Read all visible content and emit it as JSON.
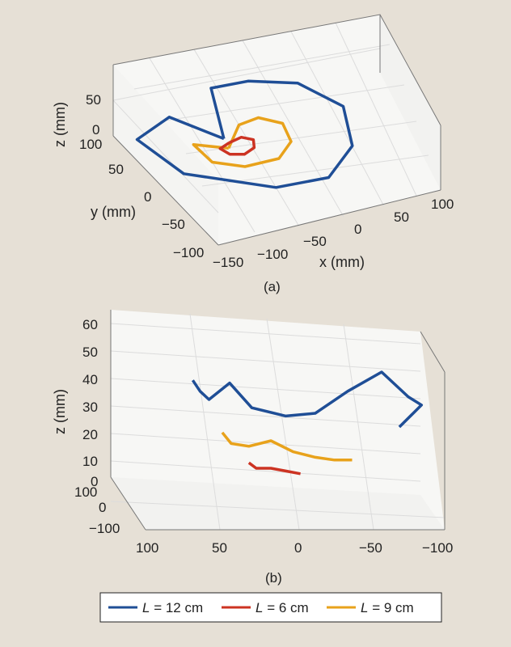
{
  "chart_data": [
    {
      "type": "line",
      "panel": "a",
      "caption": "(a)",
      "xlabel": "x (mm)",
      "ylabel": "y (mm)",
      "zlabel": "z (mm)",
      "xticks": [
        "−150",
        "−100",
        "−50",
        "0",
        "50",
        "100"
      ],
      "yticks": [
        "−100",
        "−50",
        "0",
        "50",
        "100"
      ],
      "zticks": [
        "0",
        "50"
      ],
      "xlim": [
        -150,
        100
      ],
      "ylim": [
        -100,
        100
      ],
      "zlim": [
        0,
        60
      ],
      "grid": true,
      "series": [
        {
          "name": "L = 12 cm",
          "x": [
            -42,
            -85,
            -140,
            -115,
            -30,
            30,
            75,
            90,
            60,
            10,
            -40,
            -42
          ],
          "y": [
            20,
            70,
            30,
            -40,
            -95,
            -100,
            -60,
            0,
            55,
            75,
            60,
            20
          ],
          "z": [
            0,
            10,
            18,
            8,
            0,
            0,
            6,
            18,
            24,
            28,
            40,
            0
          ]
        },
        {
          "name": "L = 9 cm",
          "x": [
            -45,
            -80,
            -75,
            -45,
            -5,
            20,
            25,
            5,
            -20,
            -45
          ],
          "y": [
            0,
            15,
            -25,
            -45,
            -45,
            -20,
            15,
            35,
            30,
            0
          ],
          "z": [
            0,
            5,
            4,
            2,
            2,
            3,
            5,
            6,
            6,
            0
          ]
        },
        {
          "name": "L = 6 cm",
          "x": [
            -40,
            -55,
            -50,
            -35,
            -20,
            -15,
            -25,
            -40
          ],
          "y": [
            10,
            0,
            -15,
            -20,
            -12,
            2,
            12,
            10
          ],
          "z": [
            0,
            2,
            2,
            1,
            1,
            2,
            2,
            0
          ]
        }
      ]
    },
    {
      "type": "line",
      "panel": "b",
      "caption": "(b)",
      "zlabel": "z (mm)",
      "xticks": [
        "100",
        "50",
        "0",
        "−50",
        "−100"
      ],
      "yticks": [
        "−100",
        "0",
        "100"
      ],
      "zticks": [
        "0",
        "10",
        "20",
        "30",
        "40",
        "50",
        "60"
      ],
      "xlim": [
        100,
        -100
      ],
      "zlim": [
        0,
        60
      ],
      "grid": true,
      "series": [
        {
          "name": "L = 12 cm",
          "x": [
            68,
            63,
            57,
            43,
            28,
            5,
            -15,
            -37,
            -60,
            -78,
            -87,
            -72
          ],
          "z": [
            37,
            33,
            30,
            36,
            27,
            24,
            25,
            33,
            40,
            31,
            28,
            20
          ]
        },
        {
          "name": "L = 9 cm",
          "x": [
            48,
            42,
            30,
            15,
            0,
            -15,
            -28,
            -40
          ],
          "z": [
            18,
            14,
            13,
            15,
            11,
            9,
            8,
            8
          ]
        },
        {
          "name": "L = 6 cm",
          "x": [
            30,
            25,
            15,
            5,
            -5
          ],
          "z": [
            7,
            5,
            5,
            4,
            3
          ]
        }
      ]
    }
  ],
  "legend": {
    "entries": [
      {
        "var": "L",
        "text": " = 12 cm",
        "color": "#1f4e96"
      },
      {
        "var": "L",
        "text": " = 6 cm",
        "color": "#cc3322"
      },
      {
        "var": "L",
        "text": " = 9 cm",
        "color": "#e8a21b"
      }
    ]
  },
  "colors": {
    "L12": "#1f4e96",
    "L6": "#cc3322",
    "L9": "#e8a21b"
  }
}
